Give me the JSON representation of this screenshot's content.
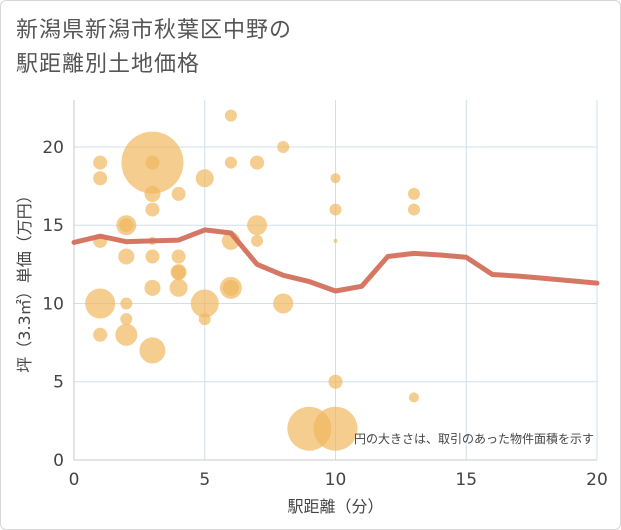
{
  "title": {
    "line1": "新潟県新潟市秋葉区中野の",
    "line2": "駅距離別土地価格"
  },
  "chart_data": {
    "type": "scatter",
    "xlabel": "駅距離（分）",
    "ylabel": "坪（3.3㎡）単価（万円）",
    "note": "円の大きさは、取引のあった物件面積を示す",
    "xlim": [
      0,
      20
    ],
    "ylim": [
      0,
      23
    ],
    "x_ticks": [
      0,
      5,
      10,
      15,
      20
    ],
    "y_ticks": [
      0,
      5,
      10,
      15,
      20
    ],
    "grid": true,
    "colors": {
      "bubble": "#f0b860",
      "line": "#d4705c"
    },
    "points": [
      {
        "x": 1,
        "y": 19,
        "size": 7
      },
      {
        "x": 1,
        "y": 18,
        "size": 7
      },
      {
        "x": 1,
        "y": 14,
        "size": 7
      },
      {
        "x": 1,
        "y": 10,
        "size": 15
      },
      {
        "x": 1,
        "y": 8,
        "size": 7
      },
      {
        "x": 2,
        "y": 15,
        "size": 10
      },
      {
        "x": 2,
        "y": 15,
        "size": 7
      },
      {
        "x": 2,
        "y": 13,
        "size": 8
      },
      {
        "x": 2,
        "y": 10,
        "size": 6
      },
      {
        "x": 2,
        "y": 9,
        "size": 6
      },
      {
        "x": 2,
        "y": 8,
        "size": 11
      },
      {
        "x": 3,
        "y": 19,
        "size": 31
      },
      {
        "x": 3,
        "y": 19,
        "size": 7
      },
      {
        "x": 3,
        "y": 17,
        "size": 8
      },
      {
        "x": 3,
        "y": 16,
        "size": 7
      },
      {
        "x": 3,
        "y": 14,
        "size": 4
      },
      {
        "x": 3,
        "y": 13,
        "size": 7
      },
      {
        "x": 3,
        "y": 11,
        "size": 8
      },
      {
        "x": 3,
        "y": 7,
        "size": 13
      },
      {
        "x": 4,
        "y": 17,
        "size": 7
      },
      {
        "x": 4,
        "y": 13,
        "size": 7
      },
      {
        "x": 4,
        "y": 12,
        "size": 8
      },
      {
        "x": 4,
        "y": 12,
        "size": 7
      },
      {
        "x": 4,
        "y": 11,
        "size": 9
      },
      {
        "x": 5,
        "y": 18,
        "size": 9
      },
      {
        "x": 5,
        "y": 10,
        "size": 14
      },
      {
        "x": 5,
        "y": 9,
        "size": 6
      },
      {
        "x": 6,
        "y": 22,
        "size": 6
      },
      {
        "x": 6,
        "y": 19,
        "size": 6
      },
      {
        "x": 6,
        "y": 14,
        "size": 9
      },
      {
        "x": 6,
        "y": 11,
        "size": 11
      },
      {
        "x": 6,
        "y": 11,
        "size": 8
      },
      {
        "x": 7,
        "y": 19,
        "size": 7
      },
      {
        "x": 7,
        "y": 15,
        "size": 10
      },
      {
        "x": 7,
        "y": 14,
        "size": 6
      },
      {
        "x": 8,
        "y": 20,
        "size": 6
      },
      {
        "x": 8,
        "y": 10,
        "size": 10
      },
      {
        "x": 9,
        "y": 2,
        "size": 22
      },
      {
        "x": 10,
        "y": 18,
        "size": 5
      },
      {
        "x": 10,
        "y": 16,
        "size": 6
      },
      {
        "x": 10,
        "y": 14,
        "size": 2
      },
      {
        "x": 10,
        "y": 5,
        "size": 7
      },
      {
        "x": 10,
        "y": 2,
        "size": 22
      },
      {
        "x": 13,
        "y": 17,
        "size": 6
      },
      {
        "x": 13,
        "y": 16,
        "size": 6
      },
      {
        "x": 13,
        "y": 4,
        "size": 5
      }
    ],
    "trend": {
      "x": [
        0,
        1,
        2,
        3,
        4,
        5,
        6,
        7,
        8,
        9,
        10,
        11,
        12,
        13,
        14,
        15,
        16,
        17,
        18,
        19,
        20
      ],
      "y": [
        13.9,
        14.3,
        13.95,
        14.0,
        14.05,
        14.7,
        14.5,
        12.5,
        11.8,
        11.4,
        10.8,
        11.1,
        13.0,
        13.2,
        13.1,
        12.95,
        11.85,
        11.75,
        11.6,
        11.45,
        11.3
      ]
    }
  }
}
